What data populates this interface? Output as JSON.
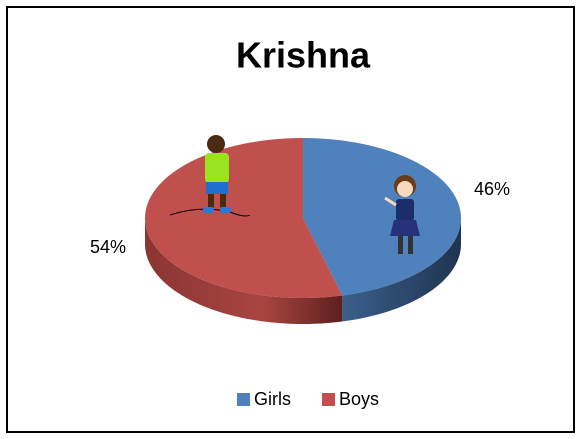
{
  "chart_data": {
    "type": "pie3d",
    "title": "Krishna",
    "categories": [
      "Girls",
      "Boys"
    ],
    "values": [
      46,
      54
    ],
    "value_labels": [
      "46%",
      "54%"
    ],
    "colors": [
      "#4f81bd",
      "#c0504d"
    ],
    "legend": "bottom"
  }
}
